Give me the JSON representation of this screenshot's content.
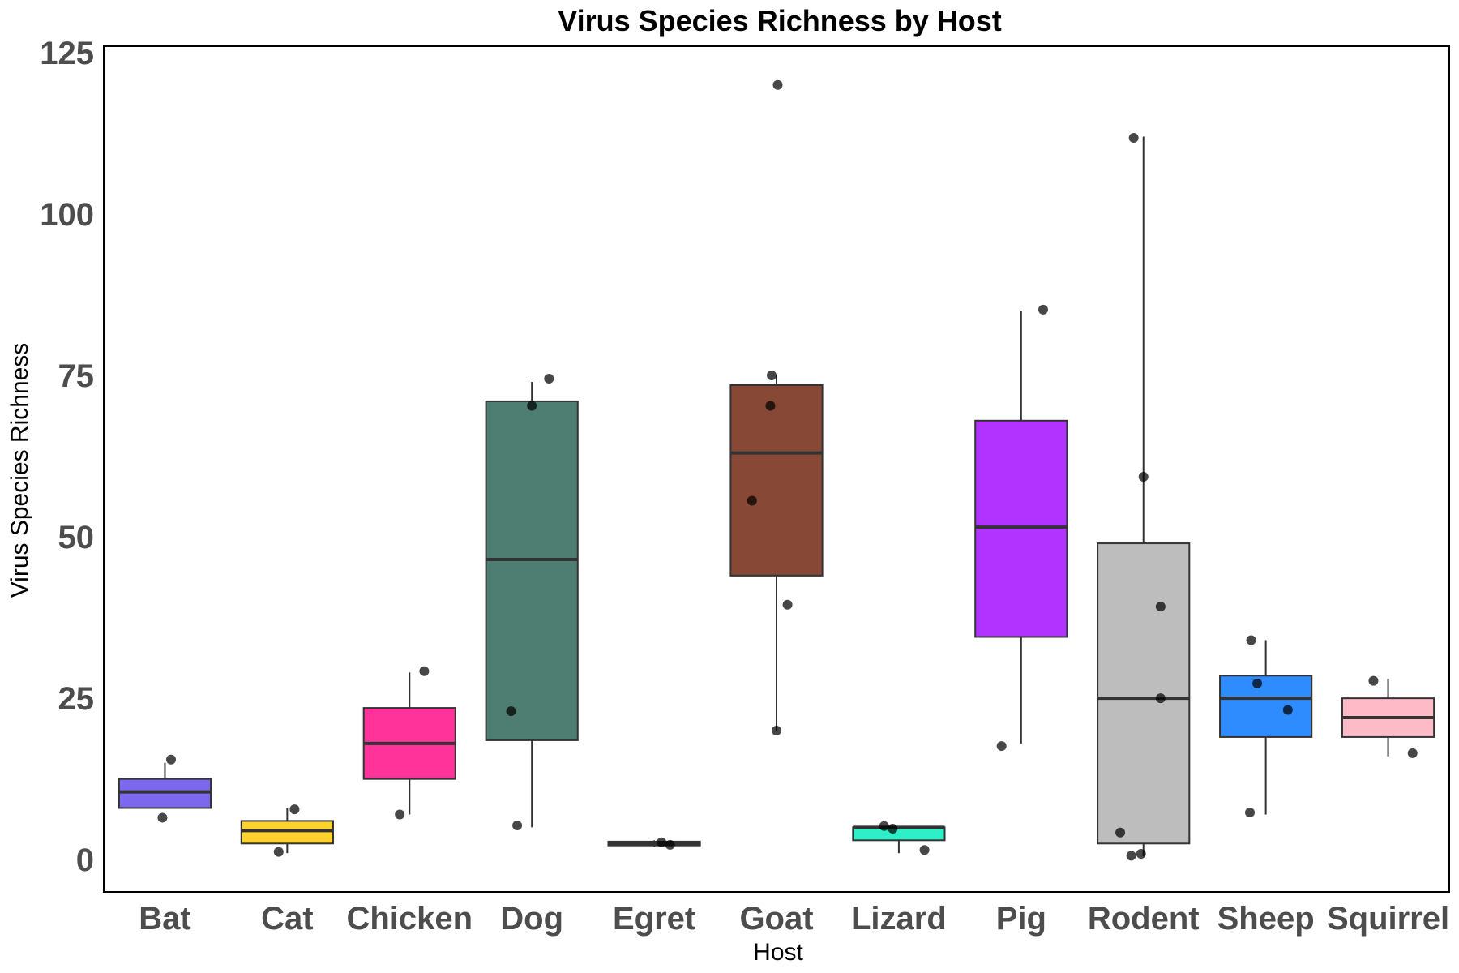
{
  "chart_data": {
    "type": "box",
    "title": "Virus Species Richness by Host",
    "xlabel": "Host",
    "ylabel": "Virus Species Richness",
    "ylim": [
      -5,
      126
    ],
    "yticks": [
      0,
      25,
      50,
      75,
      100,
      125
    ],
    "grid": false,
    "legend": "none",
    "categories": [
      "Bat",
      "Cat",
      "Chicken",
      "Dog",
      "Egret",
      "Goat",
      "Lizard",
      "Pig",
      "Rodent",
      "Sheep",
      "Squirrel"
    ],
    "boxes": [
      {
        "category": "Bat",
        "color": "#7B68EE",
        "whisker_low": 8,
        "q1": 8,
        "median": 10.5,
        "q3": 12.5,
        "whisker_high": 15
      },
      {
        "category": "Cat",
        "color": "#FFD22E",
        "whisker_low": 1,
        "q1": 2.5,
        "median": 4.5,
        "q3": 6,
        "whisker_high": 8
      },
      {
        "category": "Chicken",
        "color": "#FF3399",
        "whisker_low": 7,
        "q1": 12.5,
        "median": 18,
        "q3": 23.5,
        "whisker_high": 29
      },
      {
        "category": "Dog",
        "color": "#4E7D71",
        "whisker_low": 5,
        "q1": 18.5,
        "median": 46.5,
        "q3": 71,
        "whisker_high": 74
      },
      {
        "category": "Egret",
        "color": "#2F2F2F",
        "whisker_low": 2,
        "q1": 2.2,
        "median": 2.5,
        "q3": 2.8,
        "whisker_high": 3
      },
      {
        "category": "Goat",
        "color": "#884836",
        "whisker_low": 20,
        "q1": 44,
        "median": 63,
        "q3": 73.5,
        "whisker_high": 75
      },
      {
        "category": "Lizard",
        "color": "#2EF0C8",
        "whisker_low": 1,
        "q1": 3,
        "median": 5,
        "q3": 5,
        "whisker_high": 5
      },
      {
        "category": "Pig",
        "color": "#B233FF",
        "whisker_low": 18,
        "q1": 34.5,
        "median": 51.5,
        "q3": 68,
        "whisker_high": 85
      },
      {
        "category": "Rodent",
        "color": "#BDBDBD",
        "whisker_low": 0.5,
        "q1": 2.5,
        "median": 25,
        "q3": 49,
        "whisker_high": 112
      },
      {
        "category": "Sheep",
        "color": "#2F8CFF",
        "whisker_low": 7,
        "q1": 19,
        "median": 25,
        "q3": 28.5,
        "whisker_high": 34
      },
      {
        "category": "Squirrel",
        "color": "#FFBAC8",
        "whisker_low": 16,
        "q1": 19,
        "median": 22,
        "q3": 25,
        "whisker_high": 28
      }
    ],
    "points": [
      {
        "category": "Bat",
        "y": 15.5,
        "jitter": 0.05
      },
      {
        "category": "Bat",
        "y": 6.5,
        "jitter": -0.02
      },
      {
        "category": "Cat",
        "y": 7.8,
        "jitter": 0.06
      },
      {
        "category": "Cat",
        "y": 1.2,
        "jitter": -0.07
      },
      {
        "category": "Chicken",
        "y": 29.2,
        "jitter": 0.12
      },
      {
        "category": "Chicken",
        "y": 7,
        "jitter": -0.08
      },
      {
        "category": "Dog",
        "y": 74.5,
        "jitter": 0.14
      },
      {
        "category": "Dog",
        "y": 70.3,
        "jitter": 0.0
      },
      {
        "category": "Dog",
        "y": 23,
        "jitter": -0.17
      },
      {
        "category": "Dog",
        "y": 5.3,
        "jitter": -0.12
      },
      {
        "category": "Egret",
        "y": 2.7,
        "jitter": 0.06
      },
      {
        "category": "Egret",
        "y": 2.3,
        "jitter": 0.13
      },
      {
        "category": "Goat",
        "y": 120,
        "jitter": 0.01
      },
      {
        "category": "Goat",
        "y": 75,
        "jitter": -0.04
      },
      {
        "category": "Goat",
        "y": 70.3,
        "jitter": -0.05
      },
      {
        "category": "Goat",
        "y": 55.6,
        "jitter": -0.2
      },
      {
        "category": "Goat",
        "y": 39.5,
        "jitter": 0.09
      },
      {
        "category": "Goat",
        "y": 20,
        "jitter": 0.0
      },
      {
        "category": "Lizard",
        "y": 5.2,
        "jitter": -0.12
      },
      {
        "category": "Lizard",
        "y": 4.8,
        "jitter": -0.05
      },
      {
        "category": "Lizard",
        "y": 1.5,
        "jitter": 0.21
      },
      {
        "category": "Pig",
        "y": 85.2,
        "jitter": 0.18
      },
      {
        "category": "Pig",
        "y": 17.6,
        "jitter": -0.16
      },
      {
        "category": "Rodent",
        "y": 111.8,
        "jitter": -0.08
      },
      {
        "category": "Rodent",
        "y": 59.3,
        "jitter": 0.0
      },
      {
        "category": "Rodent",
        "y": 39.2,
        "jitter": 0.14
      },
      {
        "category": "Rodent",
        "y": 25,
        "jitter": 0.14
      },
      {
        "category": "Rodent",
        "y": 4.2,
        "jitter": -0.19
      },
      {
        "category": "Rodent",
        "y": 0.6,
        "jitter": -0.1
      },
      {
        "category": "Rodent",
        "y": 0.9,
        "jitter": -0.02
      },
      {
        "category": "Sheep",
        "y": 34,
        "jitter": -0.12
      },
      {
        "category": "Sheep",
        "y": 27.3,
        "jitter": -0.07
      },
      {
        "category": "Sheep",
        "y": 23.2,
        "jitter": 0.18
      },
      {
        "category": "Sheep",
        "y": 7.3,
        "jitter": -0.13
      },
      {
        "category": "Squirrel",
        "y": 27.7,
        "jitter": -0.12
      },
      {
        "category": "Squirrel",
        "y": 16.5,
        "jitter": 0.2
      }
    ]
  }
}
